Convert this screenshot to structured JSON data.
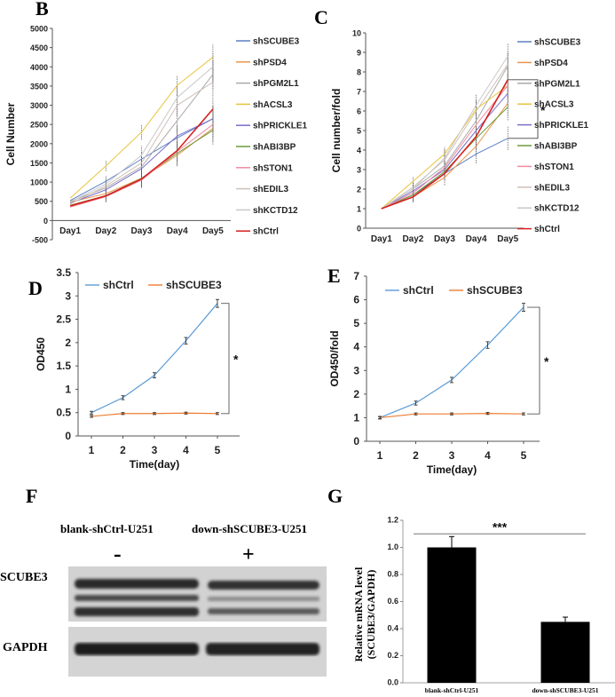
{
  "chart_data": [
    {
      "panel": "B",
      "type": "line",
      "categories": [
        "Day1",
        "Day2",
        "Day3",
        "Day4",
        "Day5"
      ],
      "ylabel": "Cell Number",
      "ylim": [
        -500,
        5000
      ],
      "yticks": [
        -500,
        0,
        500,
        1000,
        1500,
        2000,
        2500,
        3000,
        3500,
        4000,
        4500,
        5000
      ],
      "legend_position": "right",
      "series": [
        {
          "name": "shSCUBE3",
          "color": "#5b7fc4",
          "values": [
            520,
            1020,
            1600,
            2150,
            2650
          ]
        },
        {
          "name": "shPSD4",
          "color": "#e8964a",
          "values": [
            480,
            700,
            1100,
            1700,
            2400
          ]
        },
        {
          "name": "shPGM2L1",
          "color": "#a9a9a9",
          "values": [
            500,
            850,
            1400,
            2600,
            3800
          ]
        },
        {
          "name": "shACSL3",
          "color": "#e8c43a",
          "values": [
            580,
            1420,
            2300,
            3520,
            4250
          ]
        },
        {
          "name": "shPRICKLE1",
          "color": "#7a6fc9",
          "values": [
            450,
            800,
            1350,
            2200,
            2650
          ]
        },
        {
          "name": "shABI3BP",
          "color": "#6a9a3a",
          "values": [
            400,
            650,
            1100,
            1750,
            2350
          ]
        },
        {
          "name": "shSTON1",
          "color": "#f08aa0",
          "values": [
            350,
            620,
            1050,
            1800,
            2500
          ]
        },
        {
          "name": "shEDIL3",
          "color": "#d0c0b8",
          "values": [
            430,
            900,
            1500,
            3000,
            3600
          ]
        },
        {
          "name": "shKCTD12",
          "color": "#c8c8cc",
          "values": [
            480,
            950,
            1700,
            3200,
            4000
          ]
        },
        {
          "name": "shCtrl",
          "color": "#d62020",
          "values": [
            380,
            640,
            1080,
            1820,
            2900
          ]
        }
      ]
    },
    {
      "panel": "C",
      "type": "line",
      "categories": [
        "Day1",
        "Day2",
        "Day3",
        "Day4",
        "Day5"
      ],
      "ylabel": "Cell number/fold",
      "ylim": [
        0,
        10
      ],
      "yticks": [
        0,
        1,
        2,
        3,
        4,
        5,
        6,
        7,
        8,
        9,
        10
      ],
      "legend_position": "right",
      "annotation": "*",
      "series": [
        {
          "name": "shSCUBE3",
          "color": "#5b7fc4",
          "values": [
            1,
            1.7,
            2.8,
            3.8,
            4.6
          ]
        },
        {
          "name": "shPSD4",
          "color": "#e8964a",
          "values": [
            1,
            1.6,
            2.6,
            4.2,
            6.4
          ]
        },
        {
          "name": "shPGM2L1",
          "color": "#a9a9a9",
          "values": [
            1,
            2.0,
            3.2,
            5.5,
            8.3
          ]
        },
        {
          "name": "shACSL3",
          "color": "#e8c43a",
          "values": [
            1,
            2.4,
            3.8,
            6.1,
            7.3
          ]
        },
        {
          "name": "shPRICKLE1",
          "color": "#7a6fc9",
          "values": [
            1,
            1.9,
            3.0,
            5.0,
            6.9
          ]
        },
        {
          "name": "shABI3BP",
          "color": "#6a9a3a",
          "values": [
            1,
            1.7,
            2.9,
            4.6,
            6.2
          ]
        },
        {
          "name": "shSTON1",
          "color": "#f08aa0",
          "values": [
            1,
            1.8,
            3.1,
            5.3,
            7.3
          ]
        },
        {
          "name": "shEDIL3",
          "color": "#d0c0b8",
          "values": [
            1,
            2.1,
            3.5,
            6.0,
            8.4
          ]
        },
        {
          "name": "shKCTD12",
          "color": "#c8c8cc",
          "values": [
            1,
            2.0,
            3.6,
            6.3,
            8.8
          ]
        },
        {
          "name": "shCtrl",
          "color": "#d62020",
          "values": [
            1,
            1.6,
            2.8,
            4.7,
            7.6
          ]
        }
      ]
    },
    {
      "panel": "D",
      "type": "line",
      "categories": [
        "1",
        "2",
        "3",
        "4",
        "5"
      ],
      "xlabel": "Time(day)",
      "ylabel": "OD450",
      "ylim": [
        0,
        3.5
      ],
      "yticks": [
        "0",
        "0.5",
        "1",
        "1.5",
        "2",
        "2.5",
        "3",
        "3.5"
      ],
      "legend_position": "top-left",
      "annotation": "*",
      "series": [
        {
          "name": "shCtrl",
          "color": "#5b9bd5",
          "values": [
            0.5,
            0.82,
            1.3,
            2.04,
            2.84
          ]
        },
        {
          "name": "shSCUBE3",
          "color": "#ed7d31",
          "values": [
            0.42,
            0.48,
            0.48,
            0.49,
            0.48
          ]
        }
      ]
    },
    {
      "panel": "E",
      "type": "line",
      "categories": [
        "1",
        "2",
        "3",
        "4",
        "5"
      ],
      "xlabel": "Time(day)",
      "ylabel": "OD450/fold",
      "ylim": [
        0,
        7
      ],
      "yticks": [
        "0",
        "1",
        "2",
        "3",
        "4",
        "5",
        "6",
        "7"
      ],
      "legend_position": "top-left",
      "annotation": "*",
      "series": [
        {
          "name": "shCtrl",
          "color": "#5b9bd5",
          "values": [
            1,
            1.62,
            2.6,
            4.08,
            5.68
          ]
        },
        {
          "name": "shSCUBE3",
          "color": "#ed7d31",
          "values": [
            1,
            1.16,
            1.16,
            1.18,
            1.16
          ]
        }
      ]
    },
    {
      "panel": "G",
      "type": "bar",
      "categories": [
        "blank-shCtrl-U251",
        "down-shSCUBE3-U251"
      ],
      "values": [
        1.0,
        0.45
      ],
      "errors": [
        0.08,
        0.035
      ],
      "ylabel": "Relative mRNA level (SCUBE3/GAPDH)",
      "ylim": [
        0,
        1.2
      ],
      "yticks": [
        "0.0",
        "0.2",
        "0.4",
        "0.6",
        "0.8",
        "1.0",
        "1.2"
      ],
      "annotation": "***"
    }
  ],
  "panels": {
    "B": "B",
    "C": "C",
    "D": "D",
    "E": "E",
    "F": "F",
    "G": "G"
  },
  "ylabel_G_line1": "Relative mRNA level",
  "ylabel_G_line2": "(SCUBE3/GAPDH)",
  "blot": {
    "lane_labels": [
      "blank-shCtrl-U251",
      "down-shSCUBE3-U251"
    ],
    "lane_marks": [
      "-",
      "+"
    ],
    "rows": [
      "SCUBE3",
      "GAPDH"
    ]
  }
}
